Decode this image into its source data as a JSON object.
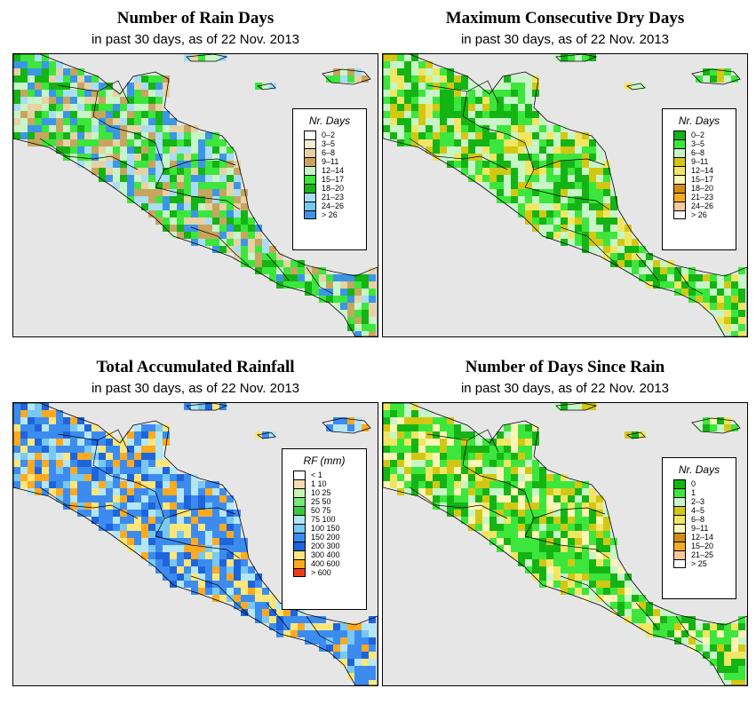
{
  "panels": [
    {
      "id": "rain-days",
      "title": "Number of Rain Days",
      "subtitle": "in past 30 days, as of  22 Nov. 2013",
      "legend": {
        "title": "Nr. Days",
        "items": [
          {
            "label": "0–2",
            "color": "#ffffff"
          },
          {
            "label": "3–5",
            "color": "#f5ebd7"
          },
          {
            "label": "6–8",
            "color": "#e6d2a5"
          },
          {
            "label": "9–11",
            "color": "#c8a55f"
          },
          {
            "label": "12–14",
            "color": "#c8f5c8"
          },
          {
            "label": "15–17",
            "color": "#3ce63c"
          },
          {
            "label": "18–20",
            "color": "#14b414"
          },
          {
            "label": "21–23",
            "color": "#aadcf5"
          },
          {
            "label": "24–26",
            "color": "#78c8f0"
          },
          {
            "label": "> 26",
            "color": "#3c96e6"
          }
        ]
      },
      "palette": [
        "#3ce63c",
        "#14b414",
        "#c8f5c8",
        "#3ce63c",
        "#c8a55f",
        "#e6d2a5",
        "#aadcf5",
        "#3c96e6"
      ]
    },
    {
      "id": "max-dry-days",
      "title": "Maximum Consecutive Dry Days",
      "subtitle": "in past 30 days, as of  22 Nov. 2013",
      "legend": {
        "title": "Nr. Days",
        "items": [
          {
            "label": "0–2",
            "color": "#14b414"
          },
          {
            "label": "3–5",
            "color": "#3ce63c"
          },
          {
            "label": "6–8",
            "color": "#c8f5c8"
          },
          {
            "label": "9–11",
            "color": "#d2c814"
          },
          {
            "label": "12–14",
            "color": "#f0e664"
          },
          {
            "label": "15–17",
            "color": "#fff5b4"
          },
          {
            "label": "18–20",
            "color": "#d28c14"
          },
          {
            "label": "21–23",
            "color": "#f5aa28"
          },
          {
            "label": "24–26",
            "color": "#f5c8a0"
          },
          {
            "label": "> 26",
            "color": "#ffffff"
          }
        ]
      },
      "palette": [
        "#3ce63c",
        "#14b414",
        "#c8f5c8",
        "#3ce63c",
        "#f0e664",
        "#d2c814",
        "#14b414",
        "#c8f5c8"
      ]
    },
    {
      "id": "total-rainfall",
      "title": "Total Accumulated Rainfall",
      "subtitle": "in past 30 days, as of  22 Nov. 2013",
      "legend": {
        "title": "RF (mm)",
        "items": [
          {
            "label": "< 1",
            "color": "#ffffff"
          },
          {
            "label": "1   10",
            "color": "#f5dcb4"
          },
          {
            "label": "10   25",
            "color": "#c8f5b4"
          },
          {
            "label": "25   50",
            "color": "#78e678"
          },
          {
            "label": "50   75",
            "color": "#3cc83c"
          },
          {
            "label": "75   100",
            "color": "#b4e6f5"
          },
          {
            "label": "100   150",
            "color": "#78c8f0"
          },
          {
            "label": "150   200",
            "color": "#3c8cf0"
          },
          {
            "label": "200   300",
            "color": "#1e64dc"
          },
          {
            "label": "300   400",
            "color": "#ffe678"
          },
          {
            "label": "400   600",
            "color": "#ffaa1e"
          },
          {
            "label": "> 600",
            "color": "#f03c14"
          }
        ]
      },
      "palette": [
        "#3c8cf0",
        "#78c8f0",
        "#1e64dc",
        "#3c8cf0",
        "#ffe678",
        "#ffaa1e",
        "#3c8cf0",
        "#b4e6f5"
      ]
    },
    {
      "id": "days-since-rain",
      "title": "Number of Days Since Rain",
      "subtitle": "in past 30 days, as of  22 Nov. 2013",
      "legend": {
        "title": "Nr. Days",
        "items": [
          {
            "label": "0",
            "color": "#14b414"
          },
          {
            "label": "1",
            "color": "#3ce63c"
          },
          {
            "label": "2–3",
            "color": "#c8f5c8"
          },
          {
            "label": "4–5",
            "color": "#d2c814"
          },
          {
            "label": "6–8",
            "color": "#f0e664"
          },
          {
            "label": "9–11",
            "color": "#fff5b4"
          },
          {
            "label": "12–14",
            "color": "#d28c14"
          },
          {
            "label": "15–20",
            "color": "#f5aa28"
          },
          {
            "label": "21–25",
            "color": "#f5c8a0"
          },
          {
            "label": "> 25",
            "color": "#ffffff"
          }
        ]
      },
      "palette": [
        "#14b414",
        "#3ce63c",
        "#c8f5c8",
        "#f0e664",
        "#fff5b4",
        "#d2c814",
        "#14b414",
        "#3ce63c"
      ]
    }
  ]
}
